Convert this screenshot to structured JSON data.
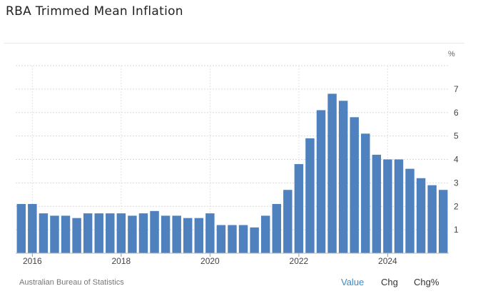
{
  "title": "RBA Trimmed Mean Inflation",
  "source": "Australian Bureau of Statistics",
  "tabs": {
    "value": "Value",
    "chg": "Chg",
    "chgp": "Chg%"
  },
  "colors": {
    "bar": "#4e81bd",
    "active_tab": "#3a8ccc"
  },
  "chart_data": {
    "type": "bar",
    "unit": "%",
    "ylim": [
      0,
      8
    ],
    "yticks": [
      1,
      2,
      3,
      4,
      5,
      6,
      7
    ],
    "x_tick_labels": [
      "2016",
      "2018",
      "2020",
      "2022",
      "2024"
    ],
    "x_tick_positions": [
      1.5,
      9.5,
      17.5,
      25.5,
      33.5
    ],
    "grid": true,
    "series": [
      {
        "values": [
          2.1,
          2.1,
          1.7,
          1.6,
          1.6,
          1.5,
          1.7,
          1.7,
          1.7,
          1.7,
          1.6,
          1.7,
          1.8,
          1.6,
          1.6,
          1.5,
          1.5,
          1.7,
          1.2,
          1.2,
          1.2,
          1.1,
          1.6,
          2.1,
          2.7,
          3.8,
          4.9,
          6.1,
          6.8,
          6.5,
          5.8,
          5.1,
          4.2,
          4.0,
          4.0,
          3.6,
          3.2,
          2.9,
          2.7
        ]
      }
    ]
  }
}
